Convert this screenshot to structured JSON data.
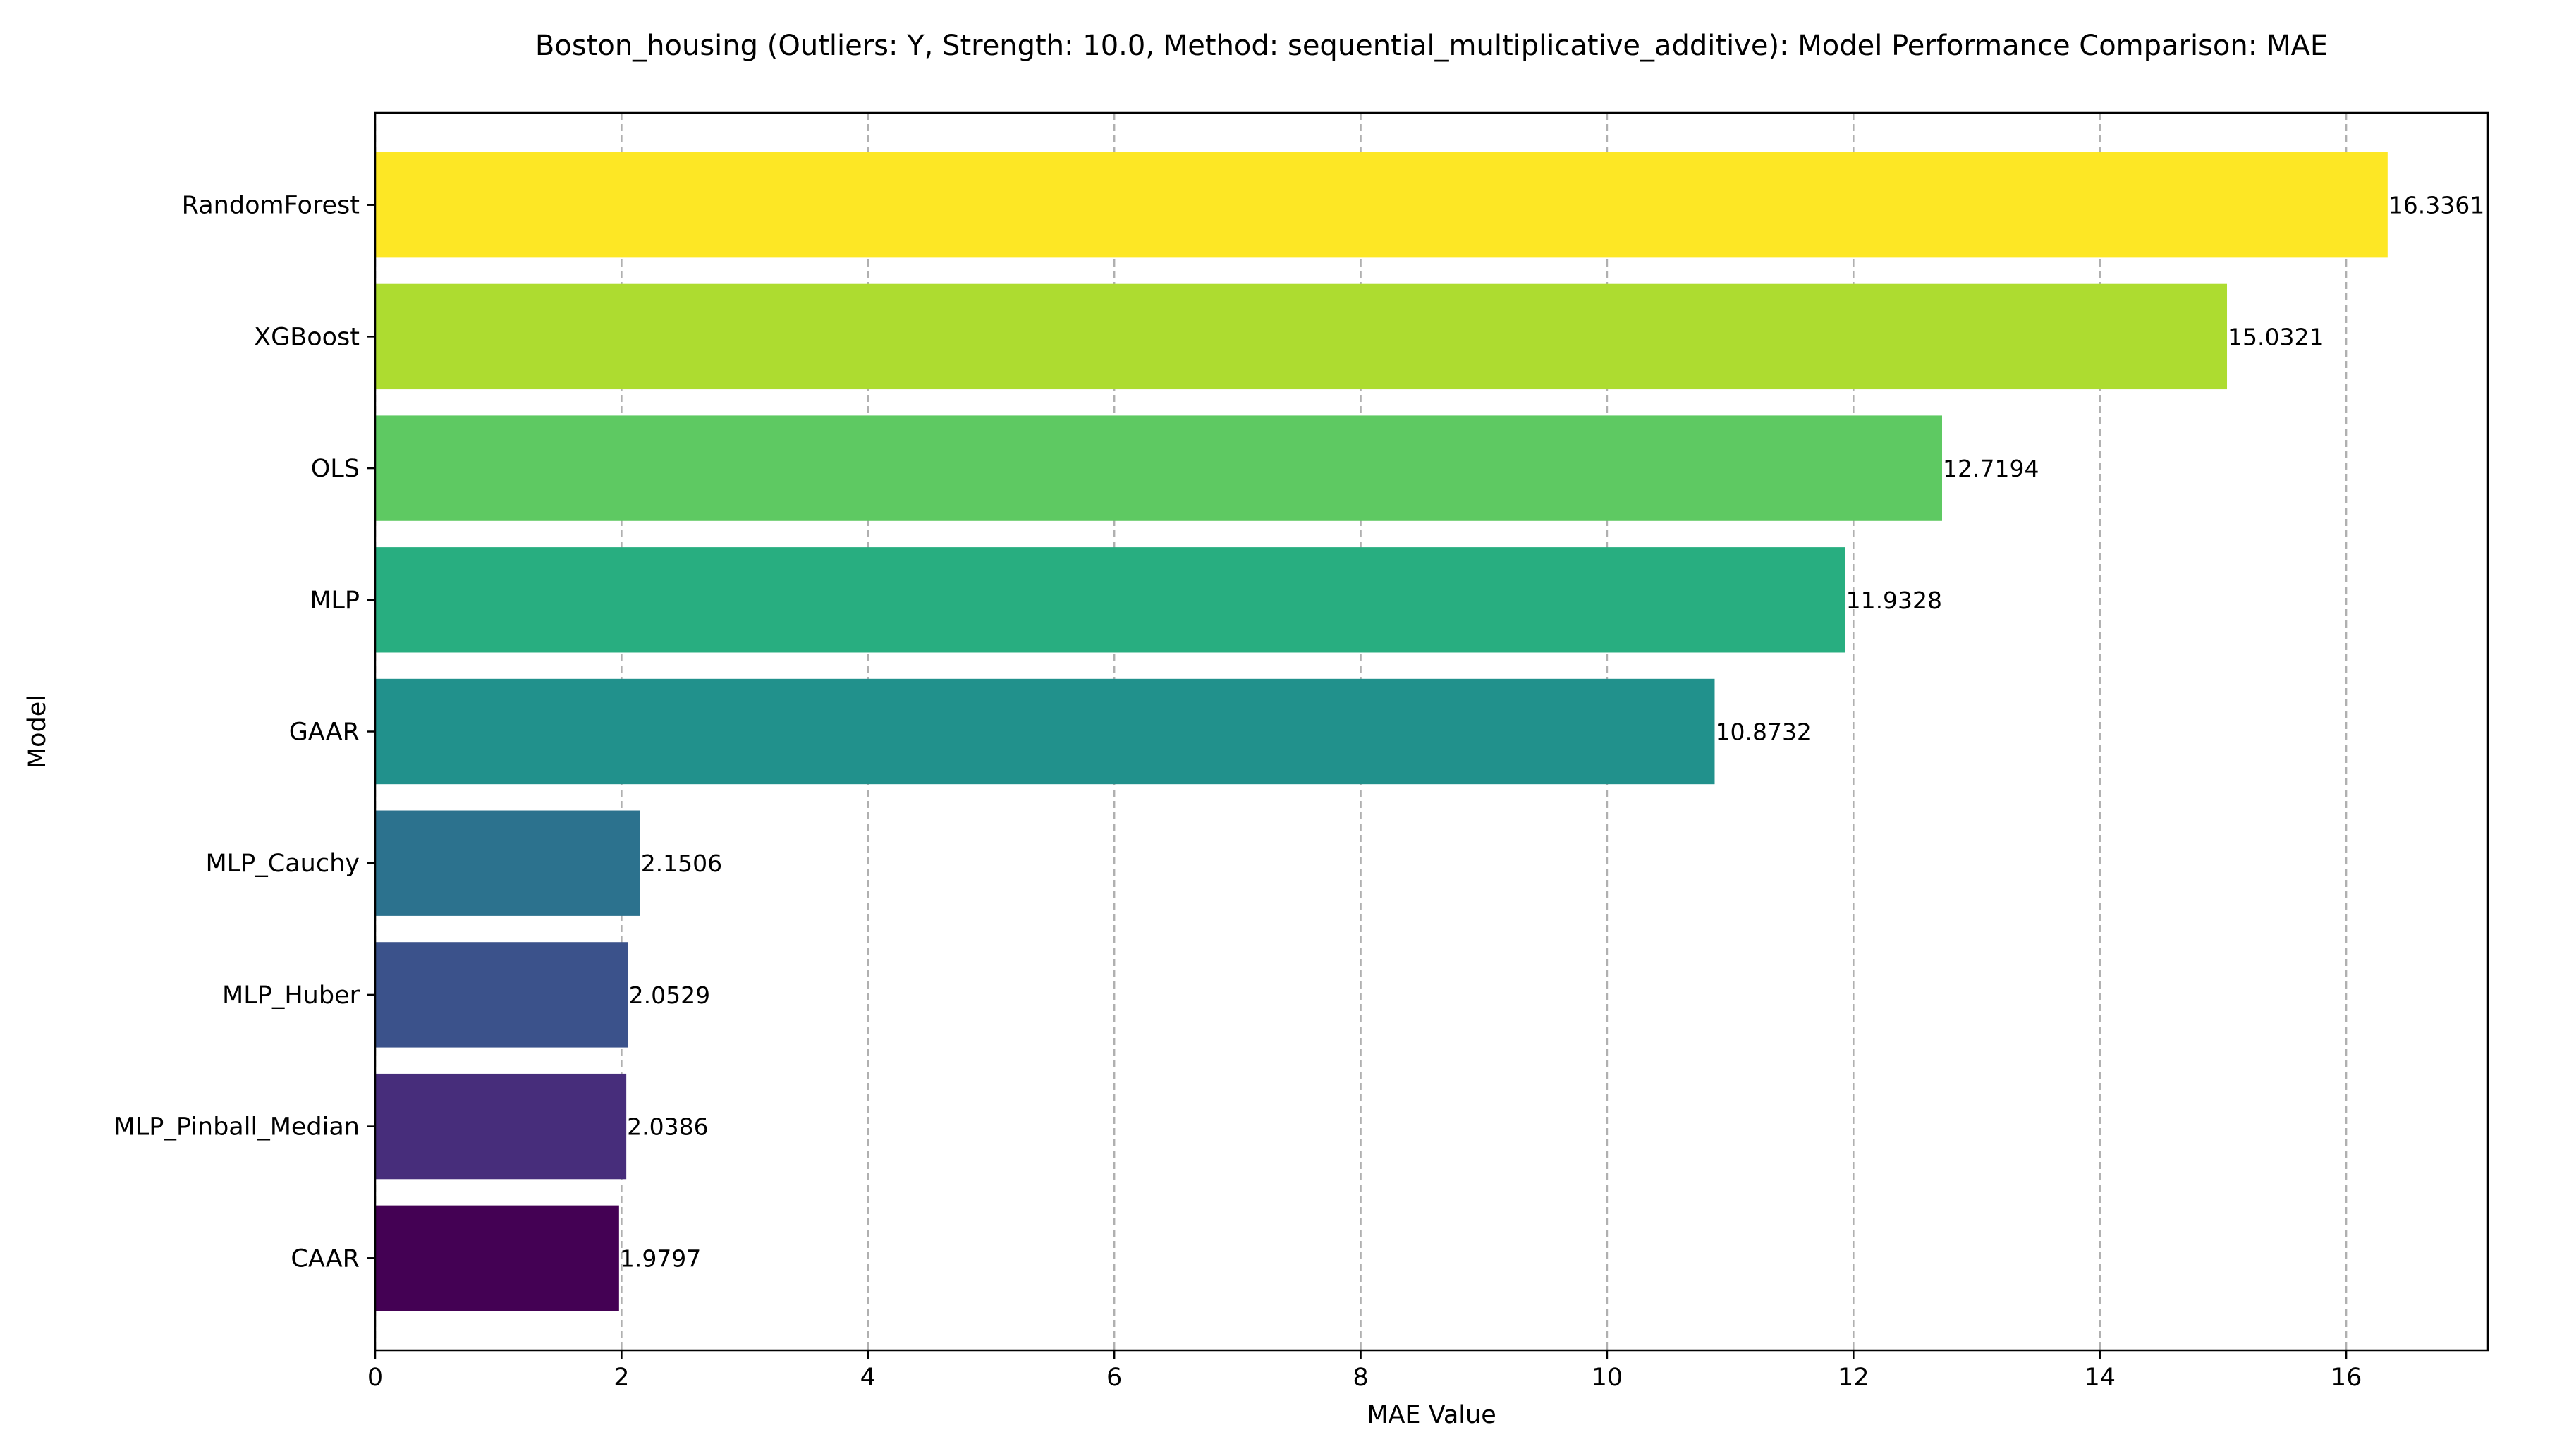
{
  "chart_data": {
    "type": "bar",
    "orientation": "horizontal",
    "title": "Boston_housing (Outliers: Y, Strength: 10.0, Method: sequential_multiplicative_additive): Model Performance Comparison: MAE",
    "xlabel": "MAE Value",
    "ylabel": "Model",
    "xlim": [
      0,
      17.15
    ],
    "xticks": [
      0,
      2,
      4,
      6,
      8,
      10,
      12,
      14,
      16
    ],
    "grid": "vertical dashed",
    "legend": "none",
    "categories": [
      "CAAR",
      "MLP_Pinball_Median",
      "MLP_Huber",
      "MLP_Cauchy",
      "GAAR",
      "MLP",
      "OLS",
      "XGBoost",
      "RandomForest"
    ],
    "values": [
      1.9797,
      2.0386,
      2.0529,
      2.1506,
      10.8732,
      11.9328,
      12.7194,
      15.0321,
      16.3361
    ],
    "value_labels": [
      "1.9797",
      "2.0386",
      "2.0529",
      "2.1506",
      "10.8732",
      "11.9328",
      "12.7194",
      "15.0321",
      "16.3361"
    ],
    "colors": [
      "#440154",
      "#472d7b",
      "#3b528b",
      "#2c728e",
      "#21918c",
      "#28ae80",
      "#5ec962",
      "#addc30",
      "#fde725"
    ]
  }
}
